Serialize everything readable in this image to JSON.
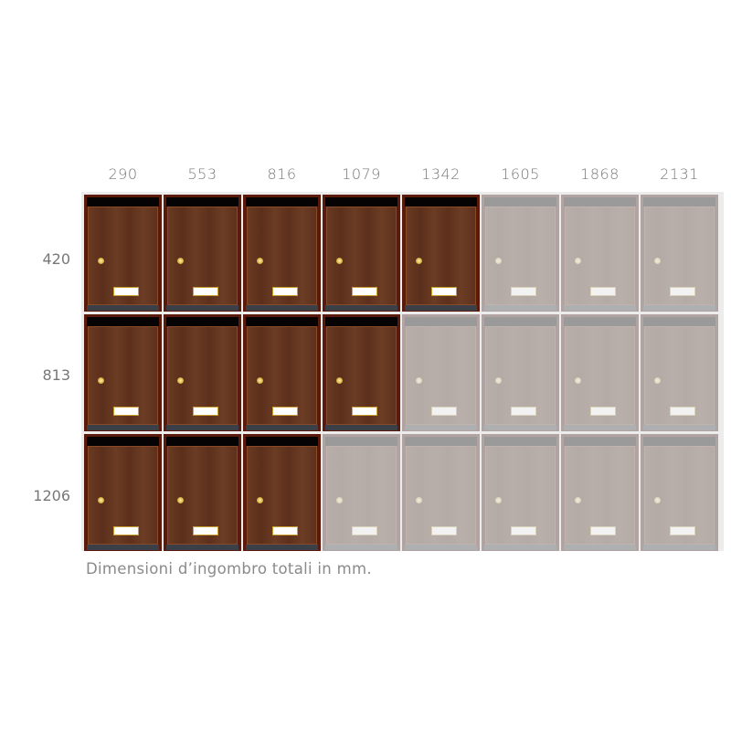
{
  "column_widths_mm": [
    "290",
    "553",
    "816",
    "1079",
    "1342",
    "1605",
    "1868",
    "2131"
  ],
  "row_heights_mm": [
    "420",
    "813",
    "1206"
  ],
  "highlighted_boxes_per_row": [
    5,
    4,
    3
  ],
  "total_columns": 8,
  "caption": "Dimensioni d’ingombro totali in mm.",
  "colors": {
    "wood": "#5e321d",
    "frame": "#5a1a0c",
    "top_slot": "#050303",
    "lock": "#d8b040",
    "nameplate_border": "#c9a030",
    "faded_background": "#ececec"
  }
}
